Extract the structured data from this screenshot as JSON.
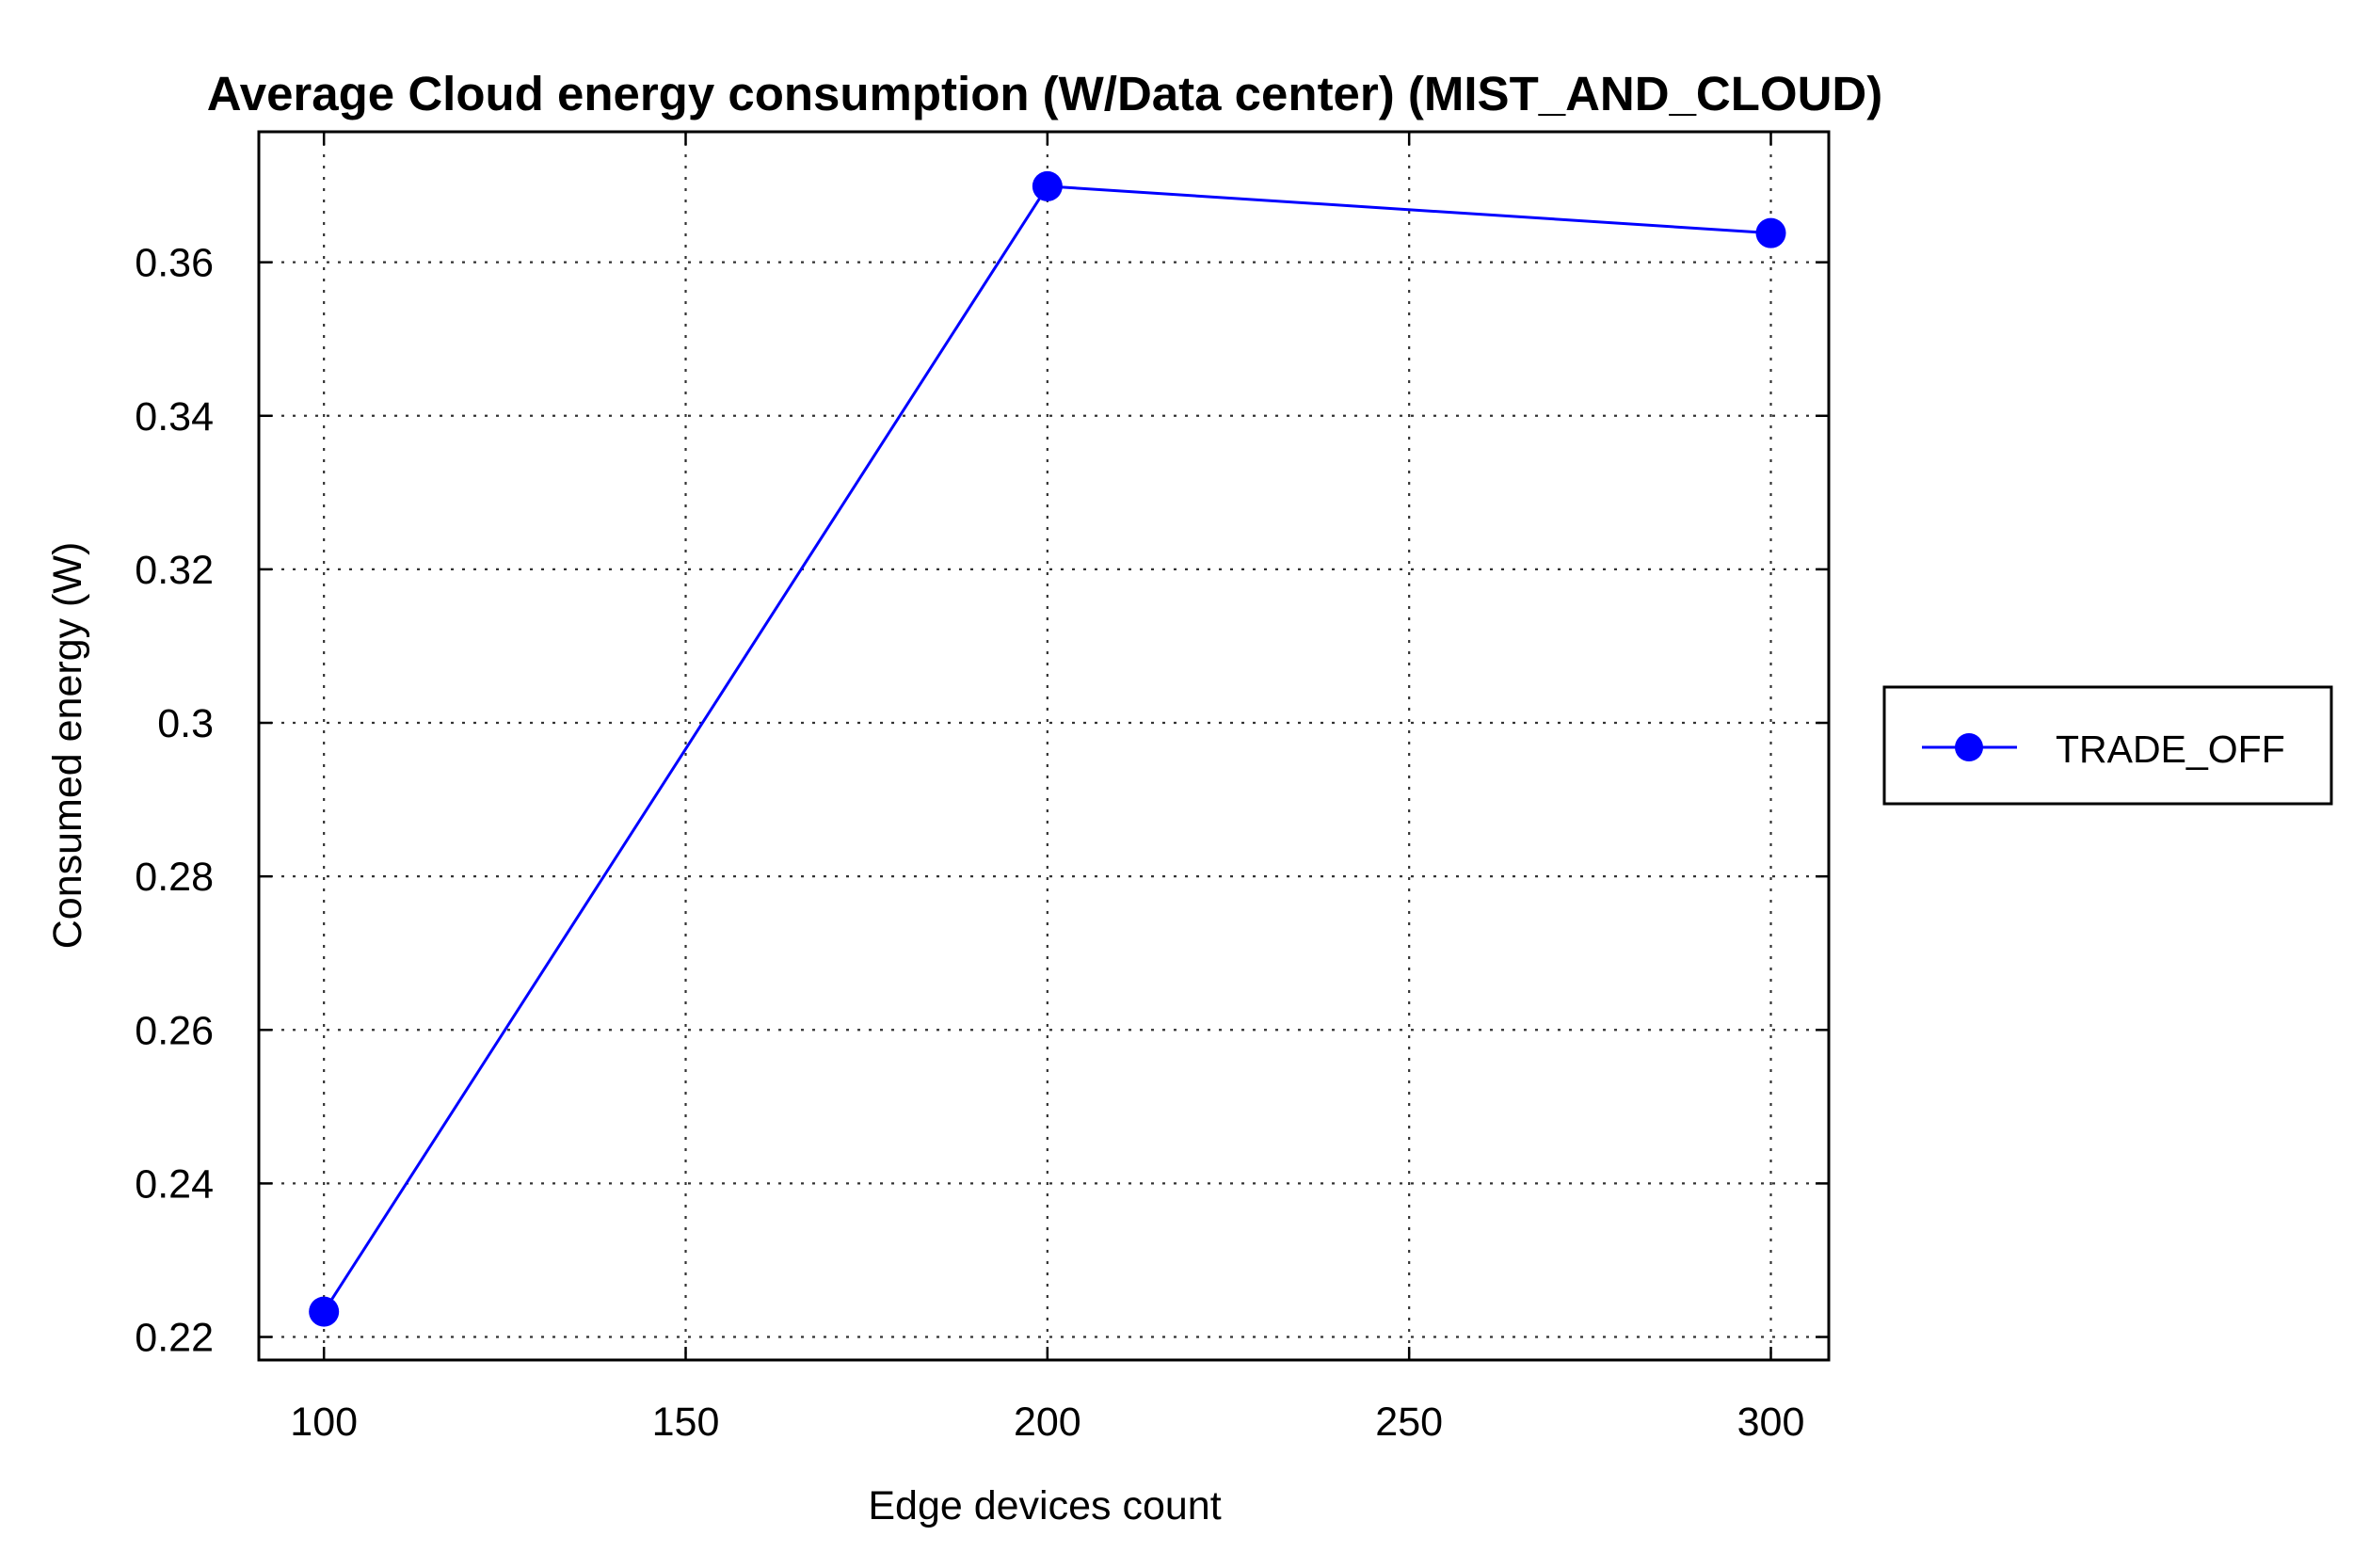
{
  "chart_data": {
    "type": "line",
    "title": "Average Cloud energy consumption (W/Data center) (MIST_AND_CLOUD)",
    "xlabel": "Edge devices count",
    "ylabel": "Consumed energy (W)",
    "x": [
      100,
      200,
      300
    ],
    "series": [
      {
        "name": "TRADE_OFF",
        "values": [
          0.2233,
          0.3699,
          0.3638
        ],
        "color": "#0000ff",
        "marker": "circle"
      }
    ],
    "xlim": [
      91,
      308
    ],
    "ylim": [
      0.217,
      0.377
    ],
    "xticks": [
      100,
      150,
      200,
      250,
      300
    ],
    "xtick_labels": [
      "100",
      "150",
      "200",
      "250",
      "300"
    ],
    "yticks": [
      0.22,
      0.24,
      0.26,
      0.28,
      0.3,
      0.32,
      0.34,
      0.36
    ],
    "ytick_labels": [
      "0.22",
      "0.24",
      "0.26",
      "0.28",
      "0.3",
      "0.32",
      "0.34",
      "0.36"
    ],
    "grid": true,
    "legend_position": "right"
  }
}
